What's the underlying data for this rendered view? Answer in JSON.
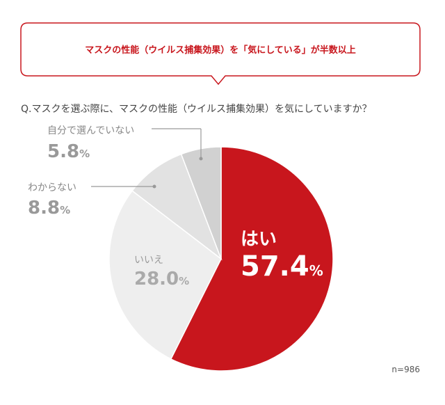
{
  "callout": {
    "text": "マスクの性能（ウイルス捕集効果）を「気にしている」が半数以上",
    "color": "#c8161d"
  },
  "question": "Q.マスクを選ぶ際に、マスクの性能（ウイルス捕集効果）を気にしていますか？",
  "chart_data": {
    "type": "pie",
    "categories": [
      "はい",
      "いいえ",
      "わからない",
      "自分で選んでいない"
    ],
    "values": [
      57.4,
      28.0,
      8.8,
      5.8
    ],
    "value_labels": [
      "57.4",
      "28.0",
      "8.8",
      "5.8"
    ],
    "unit": "%",
    "colors": [
      "#c8161d",
      "#eeeeee",
      "#e2e2e2",
      "#d1d1d1"
    ],
    "start_angle_deg": 0,
    "direction": "clockwise"
  },
  "sample_size": "n=986"
}
